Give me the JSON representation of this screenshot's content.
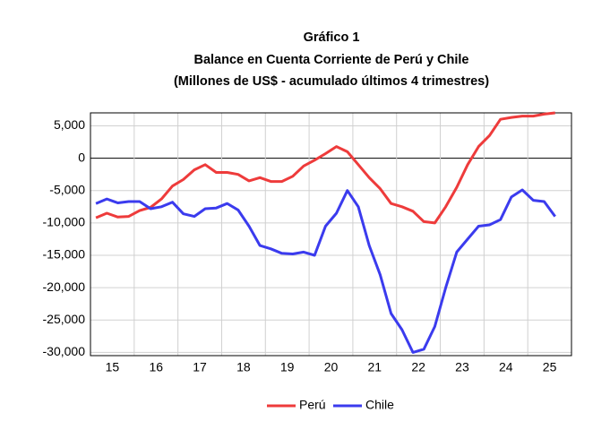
{
  "chart_data": {
    "type": "line",
    "title": "Gráfico 1",
    "subtitle": "Balance en Cuenta Corriente de Perú y Chile",
    "note": "(Millones de US$ - acumulado últimos 4 trimestres)",
    "x": [
      2015.125,
      2015.375,
      2015.625,
      2015.875,
      2016.125,
      2016.375,
      2016.625,
      2016.875,
      2017.125,
      2017.375,
      2017.625,
      2017.875,
      2018.125,
      2018.375,
      2018.625,
      2018.875,
      2019.125,
      2019.375,
      2019.625,
      2019.875,
      2020.125,
      2020.375,
      2020.625,
      2020.875,
      2021.125,
      2021.375,
      2021.625,
      2021.875,
      2022.125,
      2022.375,
      2022.625,
      2022.875,
      2023.125,
      2023.375,
      2023.625,
      2023.875,
      2024.125,
      2024.375,
      2024.625,
      2024.875,
      2025.125,
      2025.375,
      2025.625
    ],
    "series": [
      {
        "name": "Perú",
        "color": "#ee3b3b",
        "values": [
          -9200,
          -8500,
          -9100,
          -9000,
          -8100,
          -7600,
          -6300,
          -4300,
          -3300,
          -1800,
          -1000,
          -2200,
          -2200,
          -2500,
          -3500,
          -3000,
          -3600,
          -3600,
          -2800,
          -1200,
          -300,
          700,
          1800,
          1000,
          -1000,
          -3000,
          -4700,
          -7000,
          -7500,
          -8200,
          -9800,
          -10000,
          -7500,
          -4500,
          -1000,
          1800,
          3500,
          6000,
          6300,
          6500,
          6500,
          6800,
          7000
        ]
      },
      {
        "name": "Chile",
        "color": "#3b3bee",
        "values": [
          -7000,
          -6300,
          -6900,
          -6700,
          -6700,
          -7800,
          -7500,
          -6800,
          -8600,
          -9000,
          -7800,
          -7700,
          -7000,
          -8000,
          -10500,
          -13500,
          -14000,
          -14700,
          -14800,
          -14500,
          -15000,
          -10500,
          -8500,
          -5000,
          -7500,
          -13500,
          -18000,
          -24000,
          -26500,
          -30000,
          -29500,
          -26000,
          -20000,
          -14500,
          -12500,
          -10500,
          -10300,
          -9500,
          -6000,
          -4900,
          -6500,
          -6700,
          -9000
        ]
      }
    ],
    "xlim": [
      2015,
      2026
    ],
    "xticks": [
      {
        "value": 2015.5,
        "label": "15"
      },
      {
        "value": 2016.5,
        "label": "16"
      },
      {
        "value": 2017.5,
        "label": "17"
      },
      {
        "value": 2018.5,
        "label": "18"
      },
      {
        "value": 2019.5,
        "label": "19"
      },
      {
        "value": 2020.5,
        "label": "20"
      },
      {
        "value": 2021.5,
        "label": "21"
      },
      {
        "value": 2022.5,
        "label": "22"
      },
      {
        "value": 2023.5,
        "label": "23"
      },
      {
        "value": 2024.5,
        "label": "24"
      },
      {
        "value": 2025.5,
        "label": "25"
      }
    ],
    "xgrid": [
      2016,
      2017,
      2018,
      2019,
      2020,
      2021,
      2022,
      2023,
      2024,
      2025
    ],
    "ylim": [
      -30500,
      7000
    ],
    "yticks": [
      {
        "value": 5000,
        "label": "5,000"
      },
      0,
      {
        "value": -5000,
        "label": "-5,000"
      },
      {
        "value": -10000,
        "label": "-10,000"
      },
      {
        "value": -15000,
        "label": "-15,000"
      },
      {
        "value": -20000,
        "label": "-20,000"
      },
      {
        "value": -25000,
        "label": "-25,000"
      },
      {
        "value": -30000,
        "label": "-30,000"
      }
    ],
    "grid": true,
    "legend": "bottom"
  }
}
